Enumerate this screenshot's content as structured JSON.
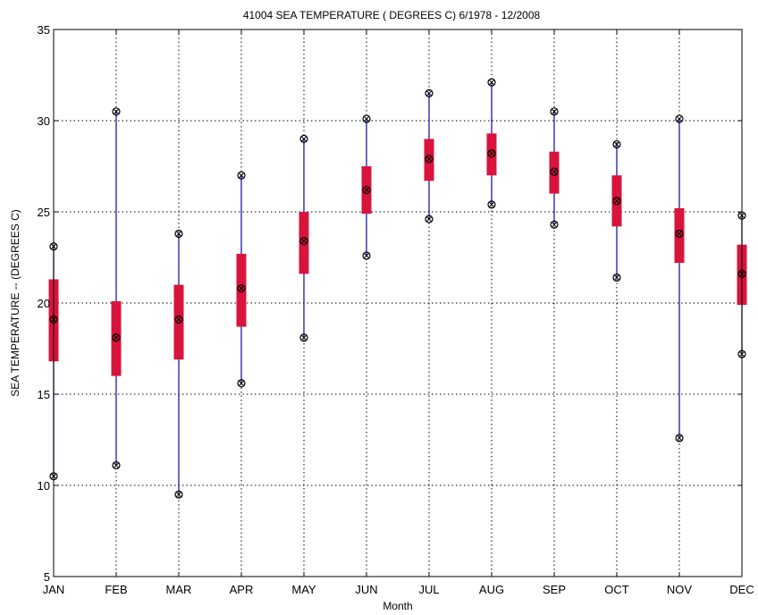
{
  "chart_data": {
    "type": "box",
    "title": "41004  SEA TEMPERATURE ( DEGREES C) 6/1978 - 12/2008",
    "xlabel": "Month",
    "ylabel": "SEA TEMPERATURE -- (DEGREES C)",
    "ylim": [
      5,
      35
    ],
    "yticks": [
      "5",
      "10",
      "15",
      "20",
      "25",
      "30",
      "35"
    ],
    "categories": [
      "JAN",
      "FEB",
      "MAR",
      "APR",
      "MAY",
      "JUN",
      "JUL",
      "AUG",
      "SEP",
      "OCT",
      "NOV",
      "DEC"
    ],
    "grid": true,
    "boxes": [
      {
        "month": "JAN",
        "min": 10.5,
        "q1": 16.8,
        "median": 19.1,
        "q3": 21.3,
        "max": 23.1
      },
      {
        "month": "FEB",
        "min": 11.1,
        "q1": 16.0,
        "median": 18.1,
        "q3": 20.1,
        "max": 30.5
      },
      {
        "month": "MAR",
        "min": 9.5,
        "q1": 16.9,
        "median": 19.1,
        "q3": 21.0,
        "max": 23.8
      },
      {
        "month": "APR",
        "min": 15.6,
        "q1": 18.7,
        "median": 20.8,
        "q3": 22.7,
        "max": 27.0
      },
      {
        "month": "MAY",
        "min": 18.1,
        "q1": 21.6,
        "median": 23.4,
        "q3": 25.0,
        "max": 29.0
      },
      {
        "month": "JUN",
        "min": 22.6,
        "q1": 24.9,
        "median": 26.2,
        "q3": 27.5,
        "max": 30.1
      },
      {
        "month": "JUL",
        "min": 24.6,
        "q1": 26.7,
        "median": 27.9,
        "q3": 29.0,
        "max": 31.5
      },
      {
        "month": "AUG",
        "min": 25.4,
        "q1": 27.0,
        "median": 28.2,
        "q3": 29.3,
        "max": 32.1
      },
      {
        "month": "SEP",
        "min": 24.3,
        "q1": 26.0,
        "median": 27.2,
        "q3": 28.3,
        "max": 30.5
      },
      {
        "month": "OCT",
        "min": 21.4,
        "q1": 24.2,
        "median": 25.6,
        "q3": 27.0,
        "max": 28.7
      },
      {
        "month": "NOV",
        "min": 12.6,
        "q1": 22.2,
        "median": 23.8,
        "q3": 25.2,
        "max": 30.1
      },
      {
        "month": "DEC",
        "min": 17.2,
        "q1": 19.9,
        "median": 21.6,
        "q3": 23.2,
        "max": 24.8
      }
    ],
    "colors": {
      "box": "#d8143c",
      "whisker": "#1a1aa8",
      "marker": "#000000",
      "grid": "#000000"
    }
  }
}
